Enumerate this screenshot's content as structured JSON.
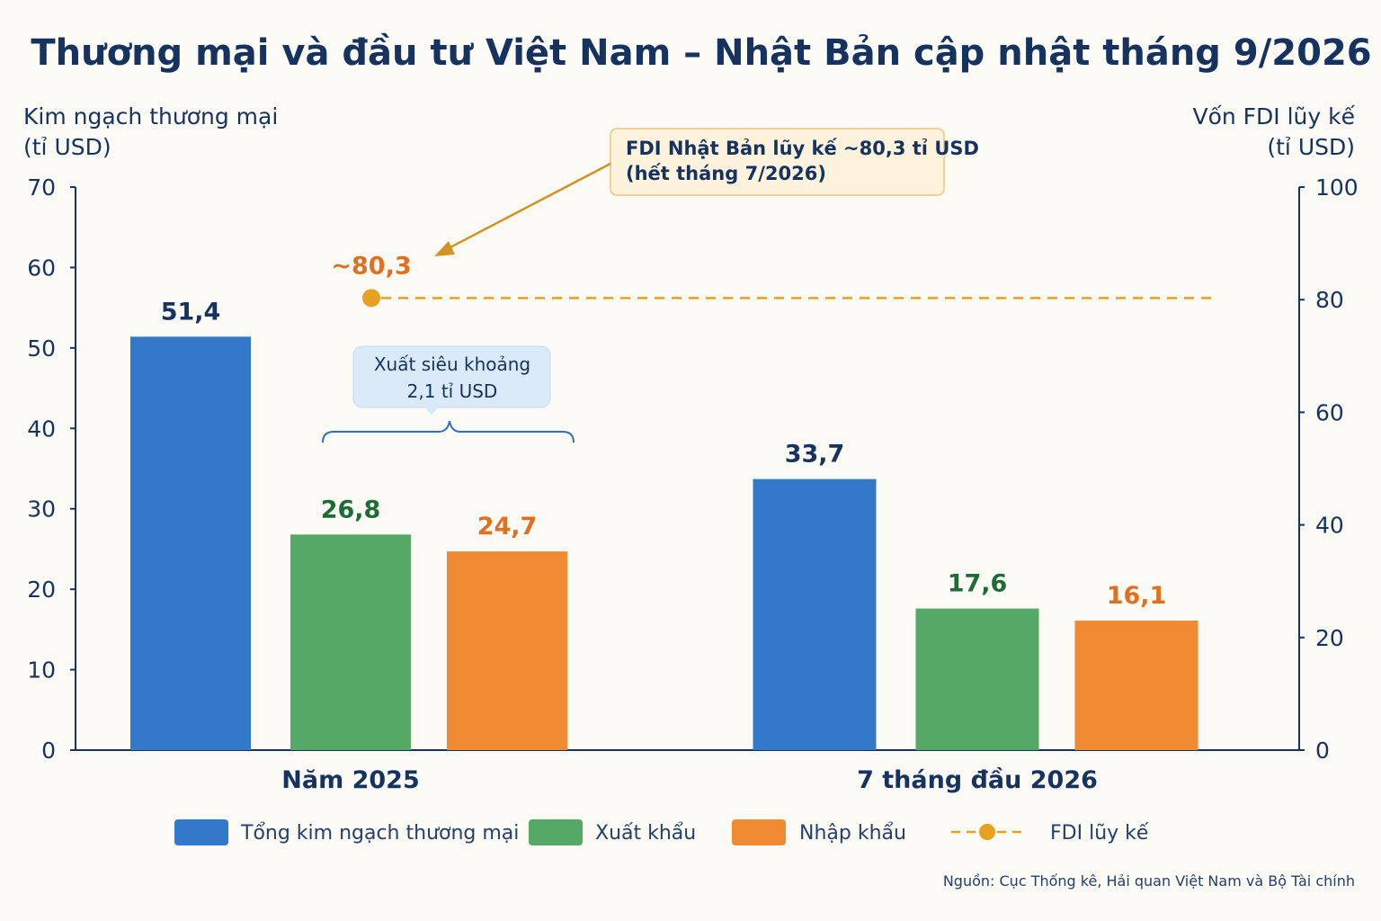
{
  "page": {
    "source": "Nguồn: Cục Thống kê, Hải quan Việt Nam và Bộ Tài chính"
  },
  "chart_data": {
    "type": "bar",
    "title": "Thương mại và đầu tư Việt Nam – Nhật Bản cập nhật tháng 9/2026",
    "ylabel": [
      "Kim ngạch thương mại",
      "(tỉ USD)"
    ],
    "y2label": [
      "Vốn FDI lũy kế",
      "(tỉ USD)"
    ],
    "ylim": [
      0,
      70
    ],
    "y2lim": [
      0,
      100
    ],
    "yticks": [
      "0",
      "10",
      "20",
      "30",
      "40",
      "50",
      "60",
      "70"
    ],
    "y2ticks": [
      "0",
      "20",
      "40",
      "60",
      "80",
      "100"
    ],
    "categories": [
      "Năm 2025",
      "7 tháng đầu 2026"
    ],
    "series": [
      {
        "name": "Tổng kim ngạch thương mại",
        "values": [
          51.4,
          33.7
        ],
        "labels": [
          "51,4",
          "33,7"
        ],
        "color": "#3479c9",
        "label_color": "#16335f"
      },
      {
        "name": "Xuất khẩu",
        "values": [
          26.8,
          17.6
        ],
        "labels": [
          "26,8",
          "17,6"
        ],
        "color": "#55a865",
        "label_color": "#1f6b36"
      },
      {
        "name": "Nhập khẩu",
        "values": [
          24.7,
          16.1
        ],
        "labels": [
          "24,7",
          "16,1"
        ],
        "color": "#f08b33",
        "label_color": "#e07020"
      }
    ],
    "fdi": {
      "name": "FDI lũy kế",
      "value": 80.3,
      "label": "~80,3",
      "axis": "right",
      "color": "#e8a020",
      "label_color": "#e07020",
      "style": "dashed"
    },
    "annotations": {
      "fdi_note": [
        "FDI Nhật Bản lũy kế ~80,3 tỉ USD",
        "(hết tháng 7/2026)"
      ],
      "surplus_note": [
        "Xuất siêu khoảng",
        "2,1 tỉ USD"
      ]
    },
    "legend": "bottom",
    "grid": false
  }
}
